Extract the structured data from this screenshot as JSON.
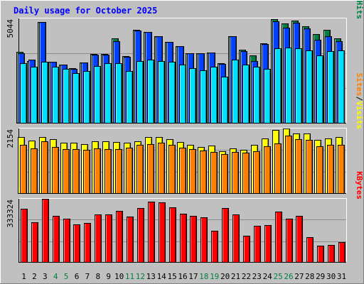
{
  "chart_data": {
    "type": "bar",
    "title": "Daily usage for October 2025",
    "categories": [
      "1",
      "2",
      "3",
      "4",
      "5",
      "6",
      "7",
      "8",
      "9",
      "10",
      "11",
      "12",
      "13",
      "14",
      "15",
      "16",
      "17",
      "18",
      "19",
      "20",
      "21",
      "22",
      "23",
      "24",
      "25",
      "26",
      "27",
      "28",
      "29",
      "30",
      "31"
    ],
    "weekend_days": [
      "4",
      "5",
      "11",
      "12",
      "18",
      "19",
      "25",
      "26"
    ],
    "colors": {
      "hits": "#008040",
      "files": "#0040ff",
      "pages": "#00e0ff",
      "visits": "#ffff00",
      "sites": "#ff8000",
      "kbytes": "#ff0000",
      "weekend_label": "#008040",
      "title": "#0000ff",
      "background": "#c0c0c0"
    },
    "panels": [
      {
        "id": "hits-files-pages",
        "max_label": "5044",
        "ymax": 5044,
        "legend": [
          {
            "label": "Hits",
            "color": "#008040"
          },
          {
            "sep": "/"
          },
          {
            "label": "Files",
            "color": "#0040ff"
          },
          {
            "sep": "/"
          },
          {
            "label": "Pages",
            "color": "#00e0ff"
          }
        ],
        "series": [
          {
            "name": "Hits",
            "color": "#008040",
            "values": [
              3440,
              3000,
              4860,
              2960,
              2820,
              2640,
              2920,
              3320,
              3330,
              4100,
              3210,
              4490,
              4400,
              4190,
              3900,
              3700,
              3350,
              3350,
              3400,
              2880,
              4200,
              3540,
              3250,
              3850,
              5000,
              4800,
              4930,
              4670,
              4300,
              4500,
              4100
            ]
          },
          {
            "name": "Files",
            "color": "#0040ff",
            "values": [
              3350,
              3060,
              4860,
              2960,
              2800,
              2620,
              2900,
              3300,
              3300,
              3960,
              3200,
              4450,
              4400,
              4190,
              3900,
              3700,
              3350,
              3350,
              3380,
              2860,
              4190,
              3480,
              3000,
              3800,
              4900,
              4600,
              4840,
              4560,
              4000,
              4200,
              3950
            ]
          },
          {
            "name": "Pages",
            "color": "#00e0ff",
            "values": [
              3000,
              2800,
              3060,
              2810,
              2700,
              2500,
              2600,
              2850,
              2980,
              2980,
              2600,
              3100,
              3160,
              3080,
              3070,
              2900,
              2750,
              2650,
              2800,
              2340,
              3150,
              2920,
              2800,
              2700,
              3700,
              3740,
              3700,
              3600,
              3360,
              3560,
              3600
            ]
          }
        ]
      },
      {
        "id": "visits-sites",
        "max_label": "2154",
        "ymax": 2154,
        "legend": [
          {
            "label": "Visits",
            "color": "#ffff00"
          },
          {
            "sep": "/"
          },
          {
            "label": "Sites",
            "color": "#ff8000"
          }
        ],
        "series": [
          {
            "name": "Visits",
            "color": "#ffff00",
            "values": [
              1880,
              1760,
              1880,
              1800,
              1690,
              1680,
              1640,
              1730,
              1720,
              1700,
              1680,
              1720,
              1880,
              1860,
              1800,
              1700,
              1620,
              1540,
              1580,
              1400,
              1480,
              1440,
              1600,
              1820,
              2100,
              2150,
              2000,
              1980,
              1770,
              1820,
              1870
            ]
          },
          {
            "name": "Sites",
            "color": "#ff8000",
            "values": [
              1690,
              1560,
              1800,
              1600,
              1540,
              1530,
              1520,
              1570,
              1550,
              1530,
              1580,
              1680,
              1710,
              1740,
              1680,
              1580,
              1530,
              1480,
              1440,
              1370,
              1440,
              1410,
              1460,
              1640,
              1720,
              1980,
              1870,
              1840,
              1640,
              1670,
              1690
            ]
          }
        ]
      },
      {
        "id": "kbytes",
        "max_label": "333324",
        "ymax": 333324,
        "legend": [
          {
            "label": "KBytes",
            "color": "#ff0000"
          }
        ],
        "series": [
          {
            "name": "KBytes",
            "color": "#ff0000",
            "values": [
              280000,
              210000,
              333300,
              245000,
              230000,
              200000,
              205000,
              250000,
              250000,
              270000,
              240000,
              285000,
              320000,
              315000,
              290000,
              255000,
              245000,
              235000,
              165000,
              285000,
              250000,
              140000,
              190000,
              195000,
              265000,
              230000,
              245000,
              130000,
              85000,
              90000,
              105000
            ]
          }
        ]
      }
    ]
  }
}
